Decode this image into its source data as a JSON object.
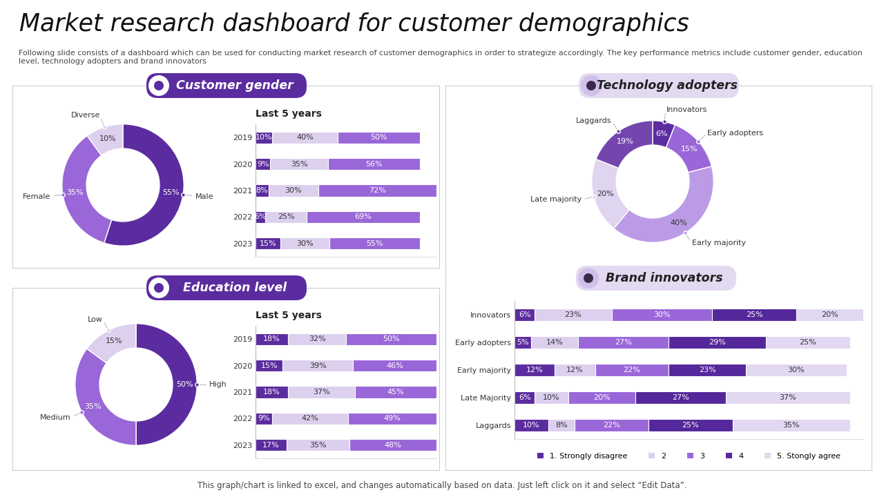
{
  "title": "Market research dashboard for customer demographics",
  "subtitle": "Following slide consists of a dashboard which can be used for conducting market research of customer demographics in order to strategize accordingly. The key performance metrics include customer gender, education level, technology adopters and brand innovators",
  "footnote": "This graph/chart is linked to excel, and changes automatically based on data. Just left click on it and select “Edit Data”.",
  "chart_data": [
    {
      "type": "pie",
      "title": "Customer gender",
      "categories": [
        "Male",
        "Female",
        "Diverse"
      ],
      "values": [
        55,
        35,
        10
      ],
      "value_labels": [
        "55%",
        "35%",
        "10%"
      ],
      "colors": [
        "#5b2c9f",
        "#9a67d8",
        "#dcd0ee"
      ],
      "data_labels": true
    },
    {
      "type": "bar",
      "title": "Last 5 years",
      "orientation": "horizontal",
      "stacked": true,
      "data_labels": true,
      "tick_labels": "y",
      "categories": [
        "2019",
        "2020",
        "2021",
        "2022",
        "2023"
      ],
      "xlim": [
        0,
        110
      ],
      "series": [
        {
          "color": "#5b2c9f",
          "values": [
            10,
            9,
            8,
            6,
            15
          ],
          "value_labels": [
            "10%",
            "9%",
            "8%",
            "6%",
            "15%"
          ]
        },
        {
          "color": "#dcd0ee",
          "values": [
            40,
            35,
            30,
            25,
            30
          ],
          "value_labels": [
            "40%",
            "35%",
            "30%",
            "25%",
            "30%"
          ]
        },
        {
          "color": "#9a67d8",
          "values": [
            50,
            56,
            72,
            69,
            55
          ],
          "value_labels": [
            "50%",
            "56%",
            "72%",
            "69%",
            "55%"
          ]
        }
      ]
    },
    {
      "type": "pie",
      "title": "Education level",
      "categories": [
        "High",
        "Medium",
        "Low"
      ],
      "values": [
        50,
        35,
        15
      ],
      "value_labels": [
        "50%",
        "35%",
        "15%"
      ],
      "colors": [
        "#5b2c9f",
        "#9a67d8",
        "#dcd0ee"
      ],
      "data_labels": true
    },
    {
      "type": "bar",
      "title": "Last 5 years",
      "orientation": "horizontal",
      "stacked": true,
      "data_labels": true,
      "tick_labels": "y",
      "categories": [
        "2019",
        "2020",
        "2021",
        "2022",
        "2023"
      ],
      "xlim": [
        0,
        100
      ],
      "series": [
        {
          "color": "#5b2c9f",
          "values": [
            18,
            15,
            18,
            9,
            17
          ],
          "value_labels": [
            "18%",
            "15%",
            "18%",
            "9%",
            "17%"
          ]
        },
        {
          "color": "#dcd0ee",
          "values": [
            32,
            39,
            37,
            42,
            35
          ],
          "value_labels": [
            "32%",
            "39%",
            "37%",
            "42%",
            "35%"
          ]
        },
        {
          "color": "#9a67d8",
          "values": [
            50,
            46,
            45,
            49,
            48
          ],
          "value_labels": [
            "50%",
            "46%",
            "45%",
            "49%",
            "48%"
          ]
        }
      ]
    },
    {
      "type": "pie",
      "title": "Technology adopters",
      "categories": [
        "Innovators",
        "Early adopters",
        "Early majority",
        "Late majority",
        "Laggards"
      ],
      "values": [
        6,
        15,
        40,
        20,
        19
      ],
      "value_labels": [
        "6%",
        "15%",
        "40%",
        "20%",
        "19%"
      ],
      "colors": [
        "#5b2c9f",
        "#9a67d8",
        "#bc9be6",
        "#e0d5f0",
        "#7446ad"
      ],
      "data_labels": true
    },
    {
      "type": "bar",
      "title": "Brand innovators",
      "orientation": "horizontal",
      "stacked": true,
      "data_labels": true,
      "tick_labels": "y",
      "legend": "lower center",
      "categories": [
        "Innovators",
        "Early adopters",
        "Early majority",
        "Late Majority",
        "Laggards"
      ],
      "xlim": [
        0,
        104
      ],
      "series": [
        {
          "name": "1. Strongly disagree",
          "color": "#5b2c9f",
          "values": [
            6,
            5,
            12,
            6,
            10
          ],
          "value_labels": [
            "6%",
            "5%",
            "12%",
            "6%",
            "10%"
          ]
        },
        {
          "name": "2",
          "color": "#dcd0ee",
          "values": [
            23,
            14,
            12,
            10,
            8
          ],
          "value_labels": [
            "23%",
            "14%",
            "12%",
            "10%",
            "8%"
          ]
        },
        {
          "name": "3",
          "color": "#9a67d8",
          "values": [
            30,
            27,
            22,
            20,
            22
          ],
          "value_labels": [
            "30%",
            "27%",
            "22%",
            "20%",
            "22%"
          ]
        },
        {
          "name": "4",
          "color": "#54279a",
          "values": [
            25,
            29,
            23,
            27,
            25
          ],
          "value_labels": [
            "25%",
            "29%",
            "23%",
            "27%",
            "25%"
          ]
        },
        {
          "name": "5. Stongly agree",
          "color": "#e2d8f1",
          "values": [
            20,
            25,
            30,
            37,
            35
          ],
          "value_labels": [
            "20%",
            "25%",
            "30%",
            "37%",
            "35%"
          ]
        }
      ]
    }
  ]
}
